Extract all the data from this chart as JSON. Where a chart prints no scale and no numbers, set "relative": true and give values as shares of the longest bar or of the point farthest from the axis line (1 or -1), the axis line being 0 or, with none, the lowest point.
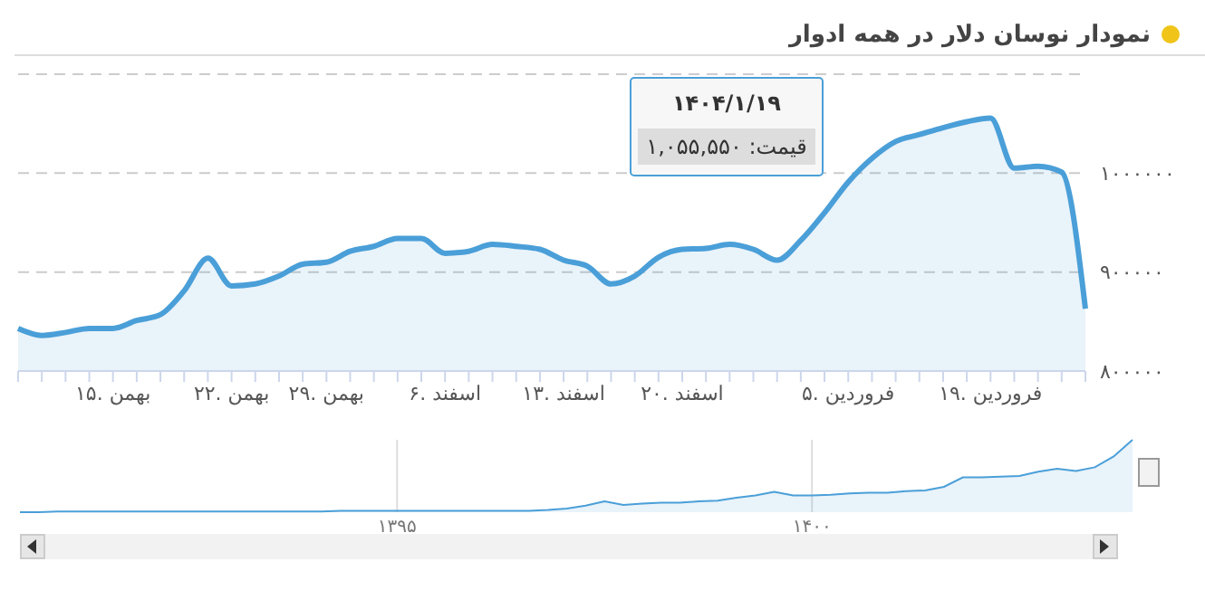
{
  "chart_data": [
    {
      "type": "area",
      "title": "نمودار نوسان دلار در همه ادوار",
      "categories": [
        null,
        null,
        null,
        null,
        "۱۵. بهمن",
        null,
        null,
        null,
        null,
        "۲۲. بهمن",
        null,
        null,
        null,
        "۲۹. بهمن",
        null,
        null,
        null,
        null,
        "۶. اسفند",
        null,
        null,
        null,
        null,
        "۱۳. اسفند",
        null,
        null,
        null,
        null,
        "۲۰. اسفند",
        null,
        null,
        null,
        null,
        null,
        null,
        "۵. فروردین",
        null,
        null,
        null,
        null,
        null,
        "۱۹. فروردین",
        null,
        null,
        null,
        null
      ],
      "values": [
        843000,
        836000,
        839000,
        843000,
        843000,
        851000,
        857000,
        881000,
        914000,
        886000,
        888000,
        896000,
        908000,
        910000,
        921000,
        926000,
        934000,
        934000,
        919000,
        921000,
        928000,
        926000,
        923000,
        912000,
        906000,
        888000,
        896000,
        915000,
        923000,
        924000,
        928000,
        923000,
        912000,
        932000,
        960000,
        991000,
        1015000,
        1032000,
        1039000,
        1046000,
        1052000,
        1055550,
        1005000,
        1007000,
        1001000,
        863000
      ],
      "color": "#4a9fd8",
      "ylim": [
        800000,
        1100000
      ],
      "yticks": [
        {
          "value": 800000,
          "label": "۸۰۰۰۰۰"
        },
        {
          "value": 900000,
          "label": "۹۰۰۰۰۰"
        },
        {
          "value": 1000000,
          "label": "۱۰۰۰۰۰۰"
        }
      ],
      "grid": "y",
      "annotations": [
        "۱۴۰۴/۱/۱۹",
        "قیمت: ۱,۰۵۵,۵۵۰"
      ]
    },
    {
      "type": "area",
      "relative": true,
      "categories": [
        null,
        null,
        null,
        null,
        null,
        null,
        null,
        null,
        null,
        null,
        null,
        null,
        null,
        null,
        null,
        null,
        null,
        null,
        null,
        null,
        "۱۳۹۵",
        null,
        null,
        null,
        null,
        null,
        null,
        null,
        null,
        null,
        null,
        null,
        null,
        null,
        null,
        null,
        null,
        null,
        null,
        null,
        null,
        null,
        "۱۴۰۰",
        null,
        null,
        null,
        null,
        null,
        null,
        null,
        null,
        null,
        null,
        null,
        null,
        null,
        null,
        null,
        null,
        null
      ],
      "values": [
        0,
        0,
        0.01,
        0.01,
        0.01,
        0.01,
        0.01,
        0.01,
        0.01,
        0.01,
        0.01,
        0.01,
        0.01,
        0.01,
        0.01,
        0.01,
        0.01,
        0.02,
        0.02,
        0.02,
        0.02,
        0.02,
        0.02,
        0.02,
        0.02,
        0.02,
        0.02,
        0.02,
        0.03,
        0.05,
        0.09,
        0.15,
        0.1,
        0.12,
        0.13,
        0.13,
        0.15,
        0.16,
        0.2,
        0.23,
        0.28,
        0.23,
        0.23,
        0.24,
        0.26,
        0.27,
        0.27,
        0.29,
        0.3,
        0.35,
        0.48,
        0.48,
        0.49,
        0.5,
        0.56,
        0.6,
        0.57,
        0.62,
        0.77,
        1
      ],
      "color": "#4a9fd8",
      "grid": "x"
    }
  ]
}
